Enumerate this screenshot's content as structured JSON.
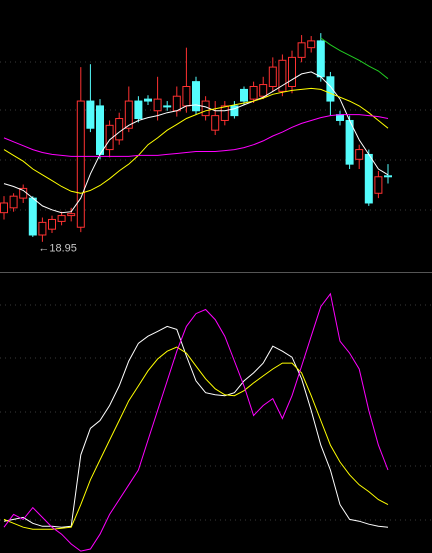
{
  "chart_data": [
    {
      "type": "candlestick",
      "open": [
        19.25,
        19.3,
        19.4,
        19.4,
        19.02,
        19.08,
        19.16,
        19.22,
        19.1,
        20.4,
        20.35,
        19.9,
        20.0,
        20.12,
        20.4,
        20.42,
        20.3,
        20.35,
        20.3,
        20.35,
        20.6,
        20.25,
        20.1,
        20.2,
        20.35,
        20.52,
        20.42,
        20.45,
        20.55,
        20.5,
        20.55,
        20.85,
        20.95,
        21.02,
        20.65,
        20.26,
        20.2,
        19.8,
        19.85,
        19.45,
        19.63
      ],
      "high": [
        19.42,
        19.45,
        19.54,
        19.42,
        19.2,
        19.22,
        19.26,
        19.3,
        20.75,
        20.78,
        20.42,
        20.2,
        20.28,
        20.55,
        20.45,
        20.46,
        20.65,
        20.4,
        20.55,
        20.95,
        20.65,
        20.45,
        20.4,
        20.4,
        20.4,
        20.55,
        20.6,
        20.65,
        20.85,
        20.88,
        20.92,
        21.08,
        21.07,
        21.1,
        20.7,
        20.3,
        20.25,
        19.95,
        19.9,
        19.68,
        19.75
      ],
      "low": [
        19.18,
        19.26,
        19.35,
        19.0,
        18.95,
        19.04,
        19.12,
        19.16,
        19.05,
        20.08,
        19.8,
        19.82,
        19.95,
        20.08,
        20.18,
        20.36,
        20.2,
        20.3,
        20.24,
        20.28,
        20.26,
        20.2,
        20.05,
        20.15,
        20.22,
        20.36,
        20.38,
        20.42,
        20.5,
        20.45,
        20.48,
        20.8,
        20.9,
        20.6,
        20.25,
        20.15,
        19.7,
        19.7,
        19.32,
        19.4,
        19.55
      ],
      "close": [
        19.35,
        19.42,
        19.5,
        19.02,
        19.15,
        19.18,
        19.22,
        19.24,
        20.4,
        20.12,
        19.85,
        20.15,
        20.22,
        20.4,
        20.22,
        20.4,
        20.42,
        20.34,
        20.45,
        20.55,
        20.3,
        20.4,
        20.25,
        20.35,
        20.25,
        20.4,
        20.55,
        20.57,
        20.75,
        20.82,
        20.85,
        21.0,
        21.02,
        20.65,
        20.4,
        20.2,
        19.75,
        19.9,
        19.35,
        19.62,
        19.63
      ],
      "up_color": "#ff3232",
      "down_color": "#54fcfc",
      "series": [
        {
          "color": "#ffffff",
          "values": [
            19.55,
            19.52,
            19.48,
            19.4,
            19.32,
            19.28,
            19.25,
            19.26,
            19.4,
            19.65,
            19.85,
            20.0,
            20.08,
            20.15,
            20.2,
            20.23,
            20.25,
            20.28,
            20.3,
            20.35,
            20.36,
            20.34,
            20.3,
            20.3,
            20.32,
            20.36,
            20.4,
            20.44,
            20.5,
            20.56,
            20.62,
            20.68,
            20.7,
            20.65,
            20.55,
            20.42,
            20.2,
            20.0,
            19.85,
            19.7,
            19.64
          ]
        },
        {
          "color": "#ffff00",
          "values": [
            19.9,
            19.84,
            19.78,
            19.7,
            19.64,
            19.58,
            19.52,
            19.47,
            19.45,
            19.48,
            19.53,
            19.6,
            19.68,
            19.75,
            19.84,
            19.95,
            20.02,
            20.1,
            20.16,
            20.22,
            20.26,
            20.3,
            20.32,
            20.34,
            20.36,
            20.38,
            20.4,
            20.43,
            20.47,
            20.49,
            20.51,
            20.52,
            20.53,
            20.52,
            20.48,
            20.44,
            20.4,
            20.35,
            20.28,
            20.2,
            20.12
          ]
        },
        {
          "color": "#ff00ff",
          "values": [
            20.02,
            19.98,
            19.94,
            19.9,
            19.87,
            19.85,
            19.84,
            19.83,
            19.83,
            19.83,
            19.83,
            19.83,
            19.83,
            19.83,
            19.84,
            19.84,
            19.84,
            19.85,
            19.86,
            19.87,
            19.88,
            19.88,
            19.88,
            19.89,
            19.9,
            19.92,
            19.95,
            19.99,
            20.04,
            20.08,
            20.13,
            20.17,
            20.2,
            20.23,
            20.25,
            20.26,
            20.26,
            20.26,
            20.25,
            20.24,
            20.22
          ]
        },
        {
          "color": "#22cc22",
          "values": [
            null,
            null,
            null,
            null,
            null,
            null,
            null,
            null,
            null,
            null,
            null,
            null,
            null,
            null,
            null,
            null,
            null,
            null,
            null,
            null,
            null,
            null,
            null,
            null,
            null,
            null,
            null,
            null,
            null,
            null,
            null,
            null,
            null,
            21.05,
            20.98,
            20.92,
            20.87,
            20.82,
            20.76,
            20.71,
            20.63
          ]
        }
      ],
      "ylim": [
        18.68,
        21.4
      ],
      "annotations": [
        {
          "text": "←18.95"
        }
      ]
    },
    {
      "type": "line",
      "series": [
        {
          "color": "#ffffff",
          "values": [
            3.5,
            4.3,
            5.2,
            2.6,
            1.3,
            1.3,
            0.9,
            1.3,
            32.6,
            44.3,
            47.7,
            54.3,
            62.9,
            73.8,
            81.6,
            84.7,
            86.8,
            89.0,
            87.7,
            76.0,
            65.1,
            59.9,
            59.0,
            58.6,
            59.9,
            65.1,
            68.6,
            72.9,
            80.3,
            78.1,
            75.5,
            66.0,
            52.1,
            36.9,
            26.0,
            10.8,
            4.3,
            3.5,
            2.2,
            1.3,
            0.9
          ]
        },
        {
          "color": "#ffff00",
          "values": [
            4.3,
            2.6,
            0.9,
            0.0,
            0.0,
            0.0,
            0.4,
            0.9,
            10.8,
            21.7,
            30.4,
            39.1,
            47.7,
            56.4,
            62.9,
            69.5,
            74.7,
            78.1,
            79.9,
            77.3,
            71.6,
            66.0,
            61.6,
            59.0,
            58.6,
            60.8,
            64.2,
            67.3,
            70.3,
            72.9,
            72.9,
            68.6,
            58.6,
            47.7,
            36.9,
            29.5,
            23.9,
            19.5,
            16.5,
            13.0,
            10.8
          ]
        },
        {
          "color": "#ff00ff",
          "values": [
            0.9,
            6.5,
            4.3,
            9.5,
            5.2,
            0.9,
            -2.2,
            -6.5,
            -9.6,
            -8.7,
            -2.2,
            6.5,
            13.0,
            19.5,
            26.0,
            39.1,
            52.1,
            65.1,
            78.1,
            89.0,
            94.6,
            96.4,
            92.0,
            84.7,
            73.8,
            62.9,
            49.9,
            54.3,
            57.3,
            48.6,
            58.6,
            71.6,
            84.7,
            97.7,
            103.3,
            82.5,
            77.3,
            70.3,
            52.1,
            36.9,
            26.0
          ]
        }
      ],
      "ylim": [
        -10,
        112
      ]
    }
  ]
}
